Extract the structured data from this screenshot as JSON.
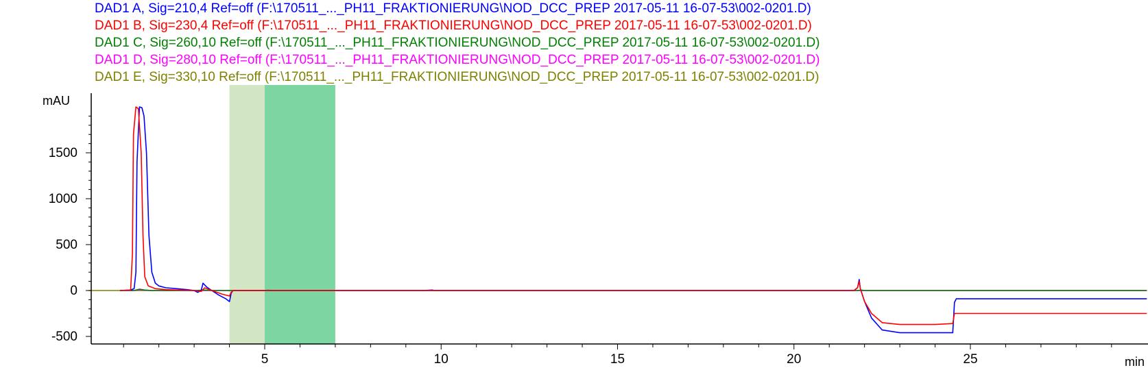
{
  "chart_data": {
    "type": "line",
    "title": "",
    "xlabel": "min",
    "ylabel": "mAU",
    "xlim": [
      0,
      30
    ],
    "ylim": [
      -600,
      2050
    ],
    "grid": false,
    "legend_position": "top",
    "x_ticks": [
      5,
      10,
      15,
      20,
      25
    ],
    "y_ticks": [
      -500,
      0,
      500,
      1000,
      1500
    ],
    "y_minor_step": 100,
    "x_minor_step": 1,
    "highlight_regions": [
      {
        "x0": 4.0,
        "x1": 5.0,
        "color": "#d2e6c3"
      },
      {
        "x0": 5.0,
        "x1": 7.0,
        "color": "#7dd6a1"
      }
    ],
    "series": [
      {
        "name": "DAD1 A, Sig=210,4 Ref=off (F:\\170511_..._PH11_FRAKTIONIERUNG\\NOD_DCC_PREP 2017-05-11 16-07-53\\002-0201.D)",
        "color": "#0000ff",
        "x": [
          0.9,
          1.2,
          1.3,
          1.35,
          1.38,
          1.45,
          1.52,
          1.58,
          1.65,
          1.72,
          1.8,
          1.9,
          2.0,
          2.2,
          2.5,
          2.8,
          3.0,
          3.1,
          3.2,
          3.25,
          3.35,
          3.5,
          3.7,
          3.9,
          4.0,
          4.05,
          4.1,
          4.5,
          5.0,
          5.5,
          6.0,
          6.5,
          7.0,
          9.5,
          9.75,
          9.8,
          10.2,
          21.4,
          21.7,
          21.8,
          21.85,
          21.88,
          21.95,
          22.0,
          22.2,
          22.5,
          23.0,
          23.5,
          24.0,
          24.5,
          24.55,
          24.6,
          25.0,
          30.0
        ],
        "y": [
          0,
          5,
          20,
          200,
          1400,
          2000,
          1990,
          1900,
          1500,
          600,
          200,
          80,
          50,
          30,
          20,
          10,
          0,
          -20,
          0,
          80,
          40,
          0,
          -50,
          -90,
          -120,
          -30,
          0,
          0,
          0,
          0,
          0,
          0,
          0,
          0,
          5,
          0,
          0,
          0,
          0,
          30,
          120,
          20,
          -60,
          -120,
          -300,
          -430,
          -460,
          -460,
          -460,
          -460,
          -130,
          -90,
          -90,
          -90
        ]
      },
      {
        "name": "DAD1 B, Sig=230,4 Ref=off (F:\\170511_..._PH11_FRAKTIONIERUNG\\NOD_DCC_PREP 2017-05-11 16-07-53\\002-0201.D)",
        "color": "#ff0000",
        "x": [
          0.9,
          1.2,
          1.25,
          1.28,
          1.35,
          1.42,
          1.5,
          1.55,
          1.6,
          1.7,
          1.9,
          2.2,
          2.5,
          3.0,
          3.2,
          3.3,
          3.5,
          3.8,
          4.0,
          4.05,
          4.1,
          5.0,
          7.0,
          21.4,
          21.7,
          21.8,
          21.85,
          21.88,
          22.0,
          22.2,
          22.5,
          23.0,
          24.0,
          24.5,
          24.55,
          25.0,
          30.0
        ],
        "y": [
          0,
          5,
          400,
          1700,
          2000,
          1980,
          1500,
          600,
          150,
          50,
          20,
          10,
          5,
          0,
          -10,
          30,
          0,
          -40,
          -60,
          -20,
          0,
          0,
          0,
          0,
          0,
          30,
          100,
          20,
          -120,
          -250,
          -350,
          -370,
          -370,
          -360,
          -250,
          -250,
          -250
        ]
      },
      {
        "name": "DAD1 C, Sig=260,10 Ref=off (F:\\170511_..._PH11_FRAKTIONIERUNG\\NOD_DCC_PREP 2017-05-11 16-07-53\\002-0201.D)",
        "color": "#008000",
        "x": [
          0.9,
          1.3,
          1.45,
          1.6,
          1.8,
          3.0,
          3.3,
          3.5,
          5.0,
          5.1,
          5.2,
          21.8,
          21.9,
          22.0,
          30.0
        ],
        "y": [
          0,
          0,
          15,
          5,
          0,
          0,
          5,
          0,
          0,
          4,
          0,
          0,
          5,
          0,
          0
        ]
      },
      {
        "name": "DAD1 D, Sig=280,10 Ref=off (F:\\170511_..._PH11_FRAKTIONIERUNG\\NOD_DCC_PREP 2017-05-11 16-07-53\\002-0201.D)",
        "color": "#ff00ff",
        "x": [
          0.9,
          1.3,
          1.45,
          1.6,
          1.8,
          30.0
        ],
        "y": [
          0,
          0,
          8,
          3,
          0,
          0
        ]
      },
      {
        "name": "DAD1 E, Sig=330,10 Ref=off (F:\\170511_..._PH11_FRAKTIONIERUNG\\NOD_DCC_PREP 2017-05-11 16-07-53\\002-0201.D)",
        "color": "#808000",
        "x": [
          0.0,
          30.0
        ],
        "y": [
          0,
          0
        ]
      }
    ]
  }
}
